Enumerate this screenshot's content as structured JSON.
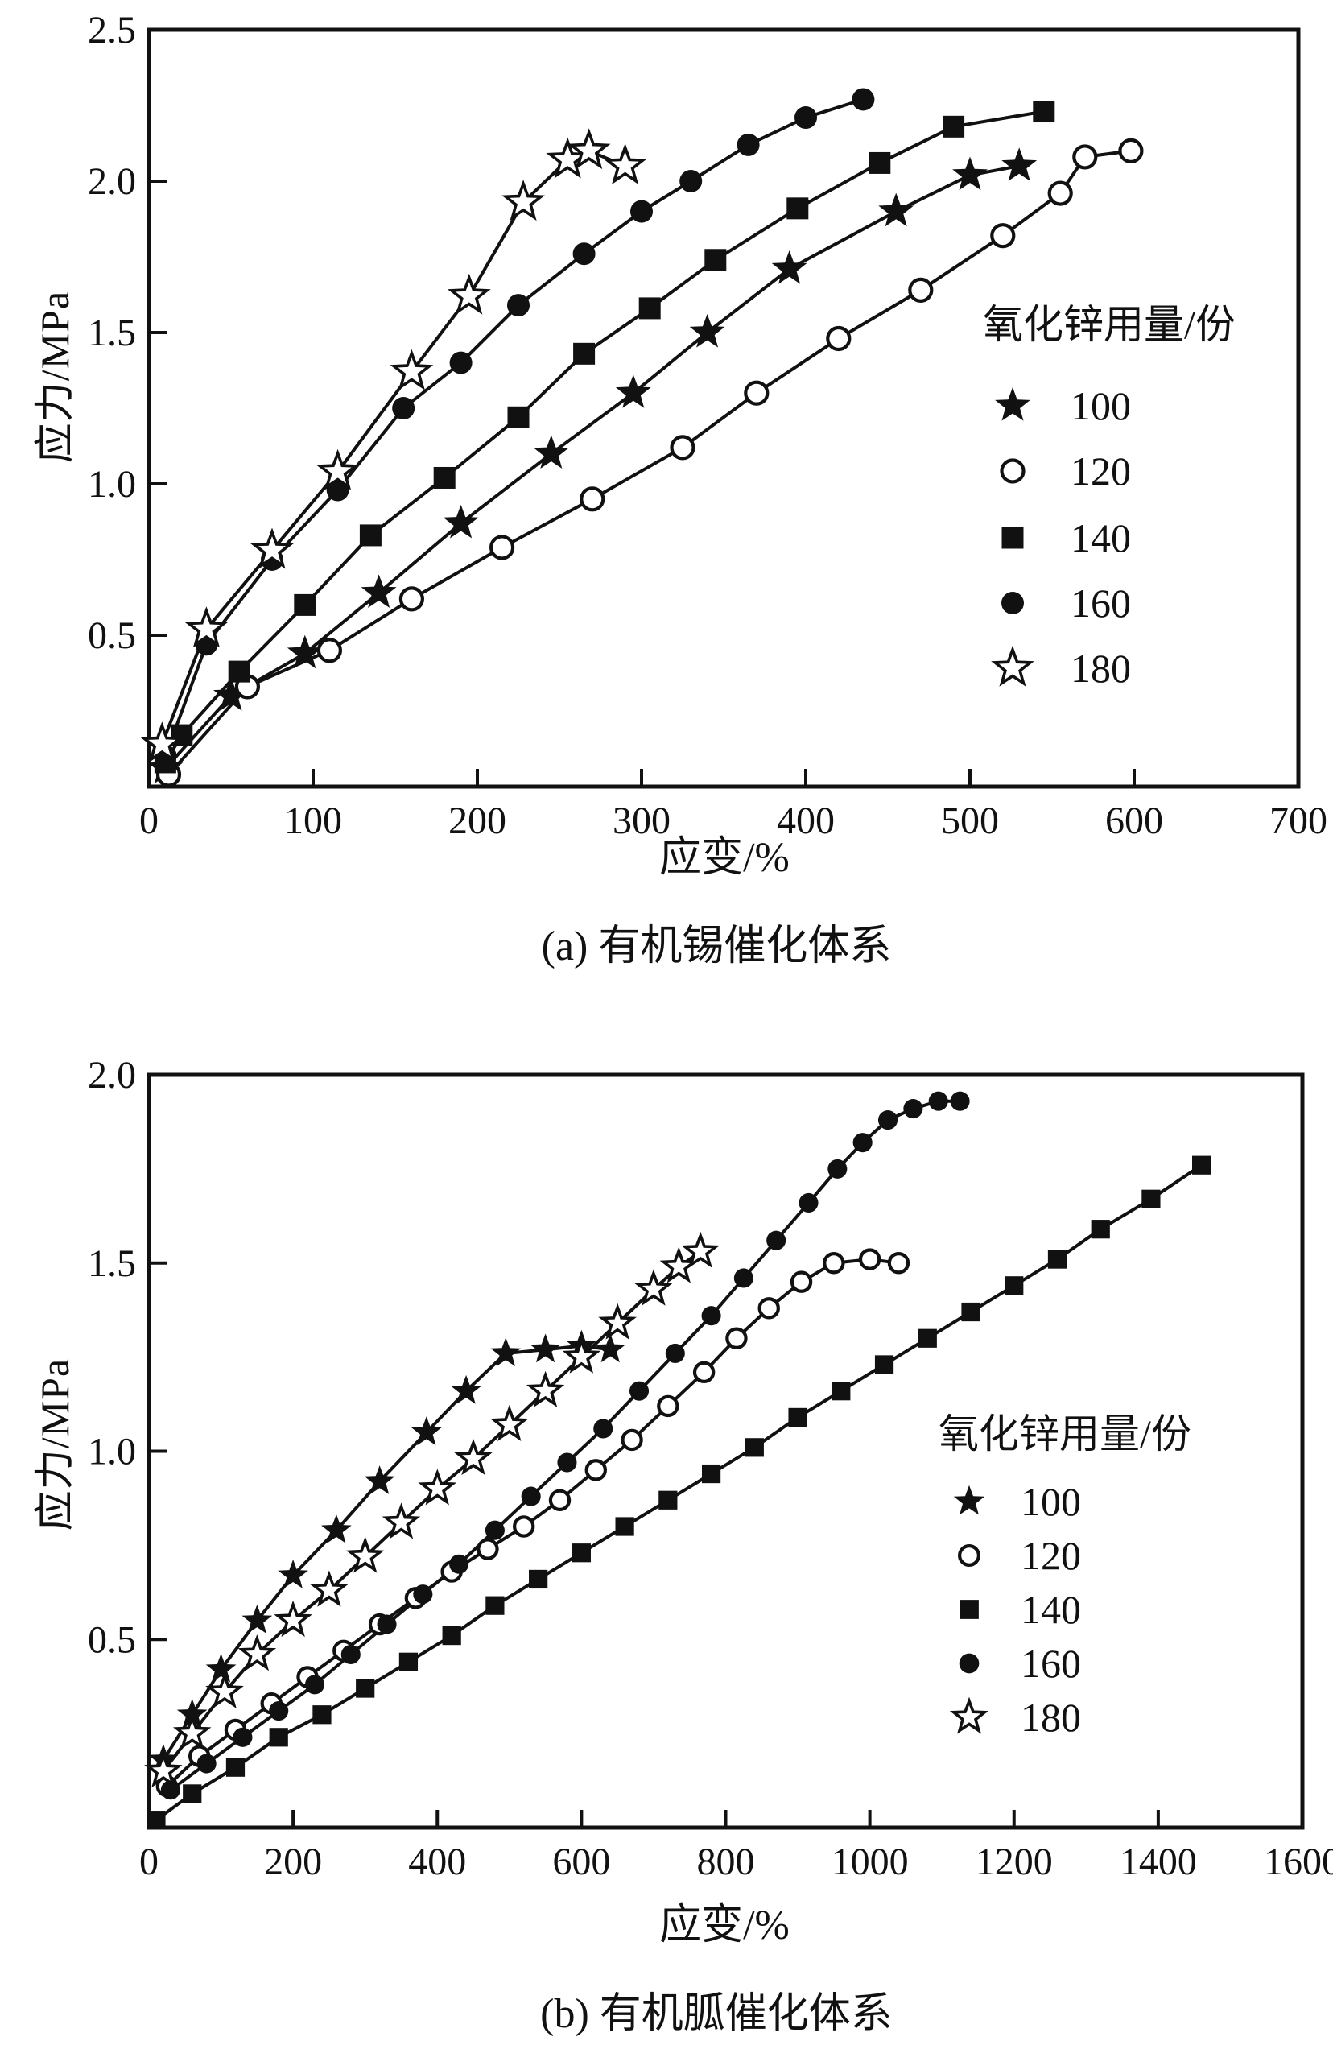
{
  "figure": {
    "background": "#ffffff",
    "ink_color": "#111111",
    "legend_title": "氧化锌用量/份"
  },
  "chart_data": [
    {
      "id": "a",
      "type": "line",
      "caption": "(a) 有机锡催化体系",
      "xlabel": "应变/%",
      "ylabel": "应力/MPa",
      "xlim": [
        0,
        700
      ],
      "ylim": [
        0,
        2.5
      ],
      "xticks": [
        0,
        100,
        200,
        300,
        400,
        500,
        600,
        700
      ],
      "yticks": [
        "0.5",
        "1.0",
        "1.5",
        "2.0",
        "2.5"
      ],
      "grid": false,
      "legend_position": "right-middle-inside",
      "legend": {
        "title": "氧化锌用量/份",
        "entries": [
          {
            "marker": "star-filled",
            "label": "100"
          },
          {
            "marker": "circle-open",
            "label": "120"
          },
          {
            "marker": "square-filled",
            "label": "140"
          },
          {
            "marker": "circle-filled",
            "label": "160"
          },
          {
            "marker": "star-open",
            "label": "180"
          }
        ]
      },
      "series": [
        {
          "name": "100",
          "marker": "star-filled",
          "points": [
            [
              10,
              0.06
            ],
            [
              50,
              0.3
            ],
            [
              95,
              0.44
            ],
            [
              140,
              0.64
            ],
            [
              190,
              0.87
            ],
            [
              245,
              1.1
            ],
            [
              295,
              1.3
            ],
            [
              340,
              1.5
            ],
            [
              390,
              1.71
            ],
            [
              455,
              1.9
            ],
            [
              500,
              2.02
            ],
            [
              530,
              2.05
            ]
          ]
        },
        {
          "name": "120",
          "marker": "circle-open",
          "points": [
            [
              12,
              0.04
            ],
            [
              60,
              0.33
            ],
            [
              110,
              0.45
            ],
            [
              160,
              0.62
            ],
            [
              215,
              0.79
            ],
            [
              270,
              0.95
            ],
            [
              325,
              1.12
            ],
            [
              370,
              1.3
            ],
            [
              420,
              1.48
            ],
            [
              470,
              1.64
            ],
            [
              520,
              1.82
            ],
            [
              555,
              1.96
            ],
            [
              570,
              2.08
            ],
            [
              598,
              2.1
            ]
          ]
        },
        {
          "name": "140",
          "marker": "square-filled",
          "points": [
            [
              10,
              0.08
            ],
            [
              20,
              0.17
            ],
            [
              55,
              0.38
            ],
            [
              95,
              0.6
            ],
            [
              135,
              0.83
            ],
            [
              180,
              1.02
            ],
            [
              225,
              1.22
            ],
            [
              265,
              1.43
            ],
            [
              305,
              1.58
            ],
            [
              345,
              1.74
            ],
            [
              395,
              1.91
            ],
            [
              445,
              2.06
            ],
            [
              490,
              2.18
            ],
            [
              545,
              2.23
            ]
          ]
        },
        {
          "name": "160",
          "marker": "circle-filled",
          "points": [
            [
              10,
              0.1
            ],
            [
              35,
              0.47
            ],
            [
              75,
              0.75
            ],
            [
              115,
              0.98
            ],
            [
              155,
              1.25
            ],
            [
              190,
              1.4
            ],
            [
              225,
              1.59
            ],
            [
              265,
              1.76
            ],
            [
              300,
              1.9
            ],
            [
              330,
              2.0
            ],
            [
              365,
              2.12
            ],
            [
              400,
              2.21
            ],
            [
              435,
              2.27
            ]
          ]
        },
        {
          "name": "180",
          "marker": "star-open",
          "points": [
            [
              8,
              0.14
            ],
            [
              35,
              0.52
            ],
            [
              75,
              0.78
            ],
            [
              115,
              1.04
            ],
            [
              160,
              1.37
            ],
            [
              195,
              1.62
            ],
            [
              228,
              1.93
            ],
            [
              255,
              2.07
            ],
            [
              268,
              2.1
            ],
            [
              290,
              2.05
            ]
          ]
        }
      ]
    },
    {
      "id": "b",
      "type": "line",
      "caption": "(b) 有机胍催化体系",
      "xlabel": "应变/%",
      "ylabel": "应力/MPa",
      "xlim": [
        0,
        1600
      ],
      "ylim": [
        0,
        2.0
      ],
      "xticks": [
        0,
        200,
        400,
        600,
        800,
        1000,
        1200,
        1400,
        1600
      ],
      "yticks": [
        "0.5",
        "1.0",
        "1.5",
        "2.0"
      ],
      "grid": false,
      "legend_position": "right-middle-inside",
      "legend": {
        "title": "氧化锌用量/份",
        "entries": [
          {
            "marker": "star-filled",
            "label": "100"
          },
          {
            "marker": "circle-open",
            "label": "120"
          },
          {
            "marker": "square-filled",
            "label": "140"
          },
          {
            "marker": "circle-filled",
            "label": "160"
          },
          {
            "marker": "star-open",
            "label": "180"
          }
        ]
      },
      "series": [
        {
          "name": "100",
          "marker": "star-filled",
          "points": [
            [
              20,
              0.18
            ],
            [
              60,
              0.3
            ],
            [
              100,
              0.42
            ],
            [
              150,
              0.55
            ],
            [
              200,
              0.67
            ],
            [
              260,
              0.79
            ],
            [
              320,
              0.92
            ],
            [
              385,
              1.05
            ],
            [
              440,
              1.16
            ],
            [
              495,
              1.26
            ],
            [
              550,
              1.27
            ],
            [
              600,
              1.28
            ],
            [
              640,
              1.27
            ]
          ]
        },
        {
          "name": "120",
          "marker": "circle-open",
          "points": [
            [
              25,
              0.11
            ],
            [
              70,
              0.19
            ],
            [
              120,
              0.26
            ],
            [
              170,
              0.33
            ],
            [
              220,
              0.4
            ],
            [
              270,
              0.47
            ],
            [
              320,
              0.54
            ],
            [
              370,
              0.61
            ],
            [
              420,
              0.68
            ],
            [
              470,
              0.74
            ],
            [
              520,
              0.8
            ],
            [
              570,
              0.87
            ],
            [
              620,
              0.95
            ],
            [
              670,
              1.03
            ],
            [
              720,
              1.12
            ],
            [
              770,
              1.21
            ],
            [
              815,
              1.3
            ],
            [
              860,
              1.38
            ],
            [
              905,
              1.45
            ],
            [
              950,
              1.5
            ],
            [
              1000,
              1.51
            ],
            [
              1040,
              1.5
            ]
          ]
        },
        {
          "name": "140",
          "marker": "square-filled",
          "points": [
            [
              10,
              0.02
            ],
            [
              60,
              0.09
            ],
            [
              120,
              0.16
            ],
            [
              180,
              0.24
            ],
            [
              240,
              0.3
            ],
            [
              300,
              0.37
            ],
            [
              360,
              0.44
            ],
            [
              420,
              0.51
            ],
            [
              480,
              0.59
            ],
            [
              540,
              0.66
            ],
            [
              600,
              0.73
            ],
            [
              660,
              0.8
            ],
            [
              720,
              0.87
            ],
            [
              780,
              0.94
            ],
            [
              840,
              1.01
            ],
            [
              900,
              1.09
            ],
            [
              960,
              1.16
            ],
            [
              1020,
              1.23
            ],
            [
              1080,
              1.3
            ],
            [
              1140,
              1.37
            ],
            [
              1200,
              1.44
            ],
            [
              1260,
              1.51
            ],
            [
              1320,
              1.59
            ],
            [
              1390,
              1.67
            ],
            [
              1460,
              1.76
            ]
          ]
        },
        {
          "name": "160",
          "marker": "circle-filled",
          "points": [
            [
              30,
              0.1
            ],
            [
              80,
              0.17
            ],
            [
              130,
              0.24
            ],
            [
              180,
              0.31
            ],
            [
              230,
              0.38
            ],
            [
              280,
              0.46
            ],
            [
              330,
              0.54
            ],
            [
              380,
              0.62
            ],
            [
              430,
              0.7
            ],
            [
              480,
              0.79
            ],
            [
              530,
              0.88
            ],
            [
              580,
              0.97
            ],
            [
              630,
              1.06
            ],
            [
              680,
              1.16
            ],
            [
              730,
              1.26
            ],
            [
              780,
              1.36
            ],
            [
              825,
              1.46
            ],
            [
              870,
              1.56
            ],
            [
              915,
              1.66
            ],
            [
              955,
              1.75
            ],
            [
              990,
              1.82
            ],
            [
              1025,
              1.88
            ],
            [
              1060,
              1.91
            ],
            [
              1095,
              1.93
            ],
            [
              1125,
              1.93
            ]
          ]
        },
        {
          "name": "180",
          "marker": "star-open",
          "points": [
            [
              20,
              0.15
            ],
            [
              60,
              0.25
            ],
            [
              105,
              0.36
            ],
            [
              150,
              0.46
            ],
            [
              200,
              0.55
            ],
            [
              250,
              0.63
            ],
            [
              300,
              0.72
            ],
            [
              350,
              0.81
            ],
            [
              400,
              0.9
            ],
            [
              450,
              0.98
            ],
            [
              500,
              1.07
            ],
            [
              550,
              1.16
            ],
            [
              600,
              1.25
            ],
            [
              650,
              1.34
            ],
            [
              700,
              1.43
            ],
            [
              735,
              1.49
            ],
            [
              765,
              1.53
            ]
          ]
        }
      ]
    }
  ]
}
